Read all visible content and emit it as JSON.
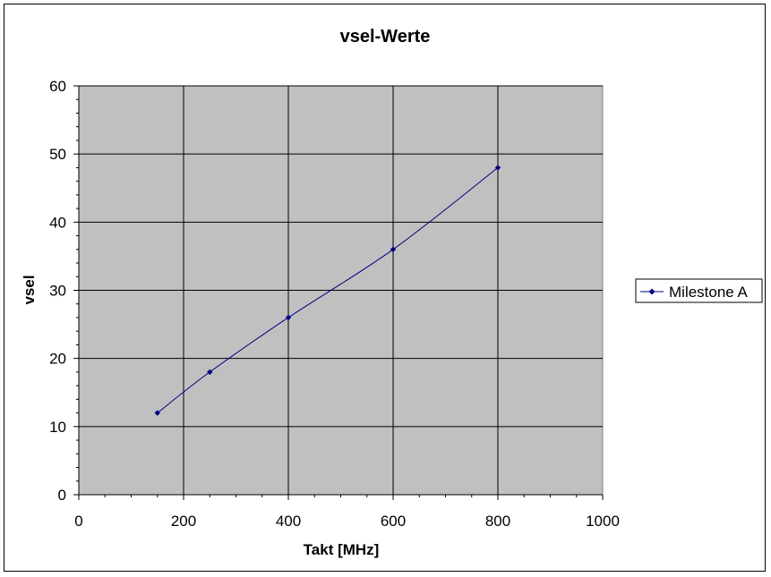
{
  "chart_data": {
    "type": "line",
    "title": "vsel-Werte",
    "xlabel": "Takt [MHz]",
    "ylabel": "vsel",
    "xlim": [
      0,
      1000
    ],
    "ylim": [
      0,
      60
    ],
    "x_ticks": [
      0,
      200,
      400,
      600,
      800,
      1000
    ],
    "y_ticks": [
      0,
      10,
      20,
      30,
      40,
      50,
      60
    ],
    "grid": true,
    "legend_position": "right",
    "plot_background": "#c0c0c0",
    "series": [
      {
        "name": "Milestone A",
        "color": "#000080",
        "marker": "diamond",
        "smooth": true,
        "x": [
          150,
          250,
          400,
          600,
          800
        ],
        "y": [
          12,
          18,
          26,
          36,
          48
        ]
      }
    ]
  }
}
